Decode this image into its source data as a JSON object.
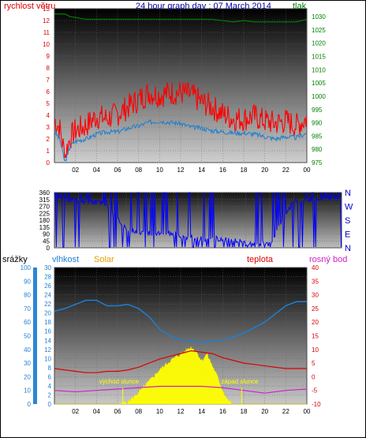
{
  "header": {
    "left_label": "rychlost větru",
    "title": "24 hour graph day : 07 March 2014",
    "right_label": "tlak"
  },
  "mid_header": {
    "left_label": "srážky",
    "humidity_label": "vlhkost",
    "solar_label": "Solar",
    "temp_label": "teplota",
    "dew_label": "rosný bod"
  },
  "annotations": {
    "sunrise": "východ slunce",
    "sunset": "západ slunce"
  },
  "colors": {
    "wind": "#ff0000",
    "wind_avg": "#1f7fd0",
    "pressure": "#008000",
    "direction": "#0000ff",
    "humidity": "#1e7fd4",
    "solar": "#ffff00",
    "temperature": "#dd0000",
    "dewpoint": "#cc22cc",
    "title": "#0000aa"
  },
  "chart_data": [
    {
      "type": "line",
      "title": "24 hour graph day : 07 March 2014",
      "x_ticks": [
        "02",
        "04",
        "06",
        "08",
        "10",
        "12",
        "14",
        "16",
        "18",
        "20",
        "22",
        "00"
      ],
      "y_left": {
        "label": "rychlost větru",
        "ticks": [
          0,
          1,
          2,
          3,
          4,
          5,
          6,
          7,
          8,
          9,
          10,
          11,
          12,
          13
        ],
        "ylim": [
          0,
          13
        ]
      },
      "y_right": {
        "label": "tlak",
        "ticks": [
          975,
          980,
          985,
          990,
          995,
          1000,
          1005,
          1010,
          1015,
          1020,
          1025,
          1030
        ],
        "ylim": [
          975,
          1033
        ]
      },
      "series": [
        {
          "name": "rychlost větru",
          "x": [
            0,
            0.5,
            1,
            1.5,
            2,
            3,
            4,
            5,
            6,
            7,
            8,
            9,
            10,
            11,
            12,
            13,
            14,
            15,
            16,
            17,
            18,
            19,
            20,
            21,
            22,
            23,
            24
          ],
          "values": [
            3.5,
            2.8,
            0.5,
            2.0,
            2.6,
            3.0,
            3.8,
            3.6,
            4.0,
            4.6,
            5.2,
            5.8,
            5.6,
            5.8,
            5.8,
            5.6,
            5.0,
            4.6,
            4.0,
            3.6,
            3.6,
            3.8,
            3.4,
            3.2,
            3.4,
            3.0,
            3.6
          ]
        },
        {
          "name": "průměr větru",
          "x": [
            0,
            0.5,
            1,
            1.5,
            2,
            3,
            4,
            5,
            6,
            7,
            8,
            9,
            10,
            11,
            12,
            13,
            14,
            15,
            16,
            17,
            18,
            19,
            20,
            21,
            22,
            23,
            24
          ],
          "values": [
            2.6,
            2.0,
            0,
            1.4,
            1.8,
            2.0,
            2.4,
            2.6,
            2.6,
            2.9,
            3.1,
            3.4,
            3.5,
            3.4,
            3.3,
            3.0,
            2.9,
            2.7,
            2.6,
            2.5,
            2.5,
            2.4,
            2.2,
            2.0,
            2.2,
            2.1,
            2.5
          ]
        },
        {
          "name": "tlak",
          "x": [
            0,
            1,
            1.5,
            3,
            6,
            9,
            12,
            15,
            17,
            18,
            19,
            20,
            22,
            23,
            24
          ],
          "values": [
            1031,
            1031,
            1030,
            1029,
            1029,
            1029,
            1029,
            1029,
            1028,
            1028.5,
            1028,
            1028,
            1028,
            1028,
            1029
          ]
        }
      ]
    },
    {
      "type": "line",
      "x_ticks": [
        "02",
        "04",
        "06",
        "08",
        "10",
        "12",
        "14",
        "16",
        "18",
        "20",
        "22",
        "00"
      ],
      "y_left": {
        "ticks": [
          0,
          45,
          90,
          135,
          180,
          225,
          270,
          315,
          360
        ],
        "ylim": [
          0,
          360
        ]
      },
      "y_right": {
        "ticks": [
          "N",
          "W",
          "S",
          "E",
          "N"
        ]
      },
      "series": [
        {
          "name": "směr větru",
          "x": [
            0,
            2,
            4,
            6,
            8,
            10,
            12,
            14,
            16,
            18,
            20,
            22,
            24
          ],
          "values": [
            330,
            310,
            300,
            120,
            90,
            90,
            60,
            60,
            30,
            30,
            300,
            320,
            330
          ]
        }
      ]
    },
    {
      "type": "line",
      "x_ticks": [
        "02",
        "04",
        "06",
        "08",
        "10",
        "12",
        "14",
        "16",
        "18",
        "20",
        "22",
        "00"
      ],
      "y_left_outer": {
        "label": "srážky",
        "ticks": [
          0,
          10,
          20,
          30,
          40,
          50,
          60,
          70,
          80,
          90,
          100
        ],
        "ylim": [
          0,
          100
        ]
      },
      "y_left_inner": {
        "label": "vlhkost",
        "ticks": [
          0,
          2,
          4,
          6,
          8,
          10,
          12,
          14,
          16,
          18,
          20,
          22,
          24,
          26,
          28,
          30
        ],
        "ylim": [
          0,
          30
        ]
      },
      "y_right": {
        "label": "teplota",
        "ticks": [
          -10,
          -5,
          0,
          5,
          10,
          15,
          20,
          25,
          30,
          35,
          40
        ],
        "ylim": [
          -10,
          40
        ]
      },
      "series": [
        {
          "name": "vlhkost",
          "x": [
            0,
            1,
            2,
            3,
            4,
            5,
            6,
            7,
            8,
            9,
            10,
            11,
            12,
            13,
            14,
            15,
            16,
            17,
            18,
            19,
            20,
            21,
            22,
            23,
            24
          ],
          "values": [
            68,
            70,
            73,
            76,
            76,
            72,
            72,
            73,
            70,
            64,
            55,
            50,
            47,
            46,
            45,
            46,
            47,
            49,
            52,
            56,
            60,
            66,
            72,
            75,
            75
          ]
        },
        {
          "name": "Solar",
          "x": [
            0,
            6,
            7,
            8,
            9,
            10,
            11,
            12,
            13,
            13.5,
            14,
            14.5,
            15,
            15.5,
            16,
            16.5,
            17,
            24
          ],
          "values": [
            0,
            0,
            0.5,
            2.5,
            5.0,
            7.5,
            9.5,
            11.0,
            12.5,
            11.5,
            9.5,
            11.0,
            8.5,
            6.0,
            3.0,
            0.8,
            0,
            0
          ]
        },
        {
          "name": "teplota",
          "x": [
            0,
            1,
            2,
            3,
            4,
            5,
            6,
            7,
            8,
            9,
            10,
            11,
            12,
            13,
            14,
            15,
            16,
            17,
            18,
            19,
            20,
            21,
            22,
            23,
            24
          ],
          "values": [
            3,
            2.5,
            2,
            1.5,
            1.5,
            2,
            2,
            2.5,
            3.5,
            5,
            6.5,
            7.5,
            8.5,
            9.5,
            9,
            8.5,
            7,
            6,
            5,
            4.5,
            4,
            3.5,
            3,
            3,
            3
          ]
        },
        {
          "name": "rosný bod",
          "x": [
            0,
            2,
            4,
            6,
            8,
            10,
            12,
            14,
            16,
            18,
            20,
            22,
            24
          ],
          "values": [
            -5,
            -5.5,
            -5,
            -4.5,
            -4,
            -3.5,
            -3.5,
            -3.5,
            -4,
            -5,
            -6,
            -5,
            -4.5
          ]
        }
      ],
      "markers": [
        {
          "label": "východ slunce",
          "x": 6.5
        },
        {
          "label": "západ slunce",
          "x": 17.8
        }
      ]
    }
  ]
}
